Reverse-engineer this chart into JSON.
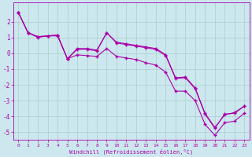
{
  "xlabel": "Windchill (Refroidissement éolien,°C)",
  "bg_color": "#cce8ee",
  "line_color": "#aa00aa",
  "grid_color": "#aacccc",
  "xlim": [
    -0.5,
    23.5
  ],
  "ylim": [
    -5.5,
    3.2
  ],
  "yticks": [
    -5,
    -4,
    -3,
    -2,
    -1,
    0,
    1,
    2
  ],
  "xticks": [
    0,
    1,
    2,
    3,
    4,
    5,
    6,
    7,
    8,
    9,
    10,
    11,
    12,
    13,
    14,
    15,
    16,
    17,
    18,
    19,
    20,
    21,
    22,
    23
  ],
  "line1_x": [
    0,
    1,
    2,
    3,
    4,
    5,
    6,
    7,
    8,
    9,
    10,
    11,
    12,
    13,
    14,
    15,
    16,
    17,
    18,
    19,
    20,
    21,
    22,
    23
  ],
  "line1_y": [
    2.6,
    1.3,
    1.0,
    1.1,
    1.1,
    -0.35,
    0.25,
    0.25,
    0.15,
    1.3,
    0.65,
    0.55,
    0.45,
    0.35,
    0.25,
    -0.15,
    -1.6,
    -1.55,
    -2.25,
    -3.85,
    -4.75,
    -3.85,
    -3.8,
    -3.35
  ],
  "line2_x": [
    0,
    1,
    2,
    3,
    4,
    5,
    6,
    7,
    8,
    9,
    10,
    11,
    12,
    13,
    14,
    15,
    16,
    17,
    18,
    19,
    20,
    21,
    22,
    23
  ],
  "line2_y": [
    2.6,
    1.3,
    1.05,
    1.1,
    1.15,
    -0.35,
    0.3,
    0.3,
    0.2,
    1.3,
    0.7,
    0.6,
    0.5,
    0.4,
    0.3,
    -0.1,
    -1.55,
    -1.5,
    -2.2,
    -3.8,
    -4.7,
    -3.9,
    -3.75,
    -3.35
  ],
  "line3_x": [
    0,
    1,
    2,
    3,
    4,
    5,
    6,
    7,
    8,
    9,
    10,
    11,
    12,
    13,
    14,
    15,
    16,
    17,
    18,
    19,
    20,
    21,
    22,
    23
  ],
  "line3_y": [
    2.6,
    1.3,
    1.05,
    1.1,
    1.15,
    -0.35,
    -0.1,
    -0.15,
    -0.2,
    0.3,
    -0.2,
    -0.3,
    -0.4,
    -0.6,
    -0.75,
    -1.2,
    -2.4,
    -2.4,
    -3.0,
    -4.5,
    -5.2,
    -4.4,
    -4.3,
    -3.8
  ]
}
